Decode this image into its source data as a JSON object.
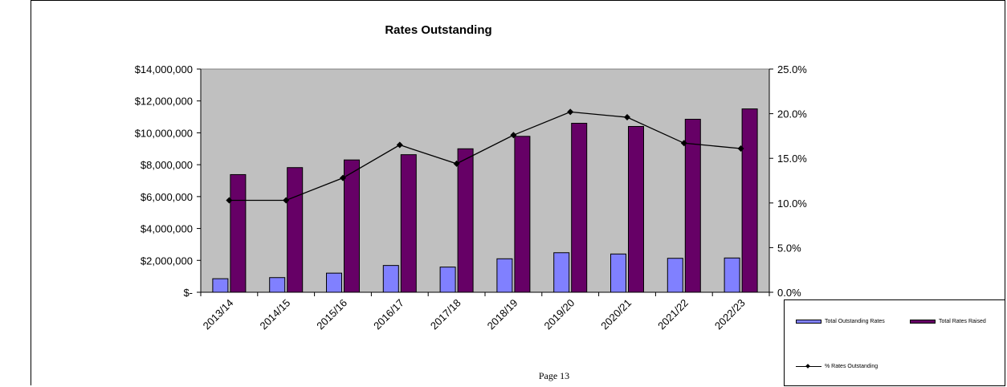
{
  "chart_data": {
    "type": "bar",
    "title": "Rates Outstanding",
    "categories": [
      "2013/14",
      "2014/15",
      "2015/16",
      "2016/17",
      "2017/18",
      "2018/19",
      "2019/20",
      "2020/21",
      "2021/22",
      "2022/23"
    ],
    "series": [
      {
        "name": "Total Outstanding Rates",
        "type": "bar",
        "axis": "left",
        "color": "#8080ff",
        "values": [
          850000,
          920000,
          1200000,
          1680000,
          1580000,
          2100000,
          2480000,
          2400000,
          2130000,
          2150000
        ]
      },
      {
        "name": "Total Rates Raised",
        "type": "bar",
        "axis": "left",
        "color": "#660066",
        "values": [
          7380000,
          7820000,
          8300000,
          8630000,
          9000000,
          9780000,
          10600000,
          10400000,
          10850000,
          11500000
        ]
      },
      {
        "name": "% Rates Outstanding",
        "type": "line",
        "axis": "right",
        "color": "#000000",
        "marker": "diamond",
        "values": [
          10.3,
          10.3,
          12.8,
          16.5,
          14.4,
          17.6,
          20.2,
          19.6,
          16.7,
          16.1
        ]
      }
    ],
    "y_left": {
      "ylim": [
        0,
        14000000
      ],
      "ticks": [
        0,
        2000000,
        4000000,
        6000000,
        8000000,
        10000000,
        12000000,
        14000000
      ],
      "tick_labels": [
        "$-",
        "$2,000,000",
        "$4,000,000",
        "$6,000,000",
        "$8,000,000",
        "$10,000,000",
        "$12,000,000",
        "$14,000,000"
      ]
    },
    "y_right": {
      "ylim": [
        0,
        25
      ],
      "ticks": [
        0,
        5,
        10,
        15,
        20,
        25
      ],
      "tick_labels": [
        "0.0%",
        "5.0%",
        "10.0%",
        "15.0%",
        "20.0%",
        "25.0%"
      ]
    },
    "plot_background": "#c0c0c0",
    "grid": false,
    "legend_position": "bottom-right"
  },
  "legend": {
    "items": [
      {
        "label": "Total Outstanding Rates",
        "color": "#8080ff"
      },
      {
        "label": "Total Rates Raised",
        "color": "#660066"
      },
      {
        "label": "% Rates Outstanding",
        "color": "#000000"
      }
    ]
  },
  "footer": {
    "page_label": "Page 13"
  }
}
